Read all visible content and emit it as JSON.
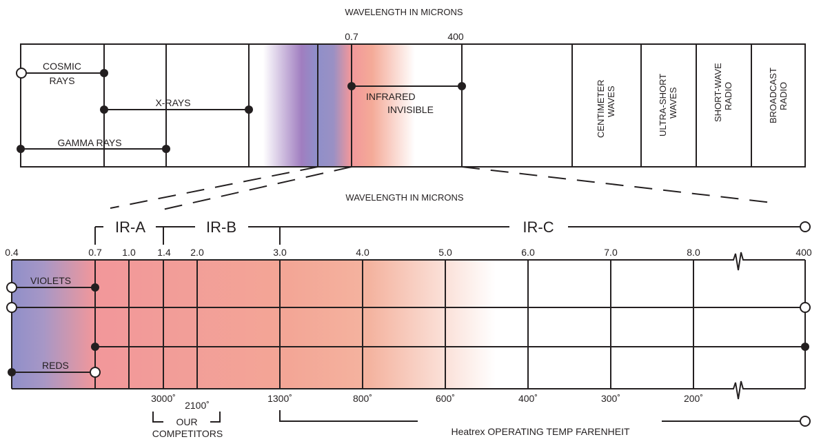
{
  "top_chart": {
    "title": "WAVELENGTH IN MICRONS",
    "tick_labels": [
      "0.7",
      "400"
    ],
    "cosmic_rays": [
      "COSMIC",
      "RAYS"
    ],
    "x_rays": "X-RAYS",
    "gamma_rays": "GAMMA RAYS",
    "infrared": [
      "INFRARED",
      "INVISIBLE"
    ],
    "bands": [
      {
        "lines": [
          "CENTIMETER",
          "WAVES"
        ]
      },
      {
        "lines": [
          "ULTRA-SHORT",
          "WAVES"
        ]
      },
      {
        "lines": [
          "SHORT-WAVE",
          "RADIO"
        ]
      },
      {
        "lines": [
          "BROADCAST",
          "RADIO"
        ]
      }
    ]
  },
  "bottom_chart": {
    "title": "WAVELENGTH IN MICRONS",
    "ir_labels": [
      {
        "text": "IR-A",
        "color": "#be1e2d"
      },
      {
        "text": "IR-B",
        "color": "#be1e2d"
      },
      {
        "text": "IR-C",
        "color": "#00a651"
      }
    ],
    "wavelength_ticks": [
      "0.4",
      "0.7",
      "1.0",
      "1.4",
      "2.0",
      "3.0",
      "4.0",
      "5.0",
      "6.0",
      "7.0",
      "8.0",
      "400"
    ],
    "violets": "VIOLETS",
    "reds": "REDS",
    "temp_ticks": [
      "3000˚",
      "2100˚",
      "1300˚",
      "800˚",
      "600˚",
      "400˚",
      "300˚",
      "200˚"
    ],
    "competitors": [
      "OUR",
      "COMPETITORS"
    ],
    "operating_temp": "Heatrex OPERATING TEMP FARENHEIT"
  },
  "colors": {
    "line": "#231f20",
    "violet": "#8f8fc9",
    "purple": "#a07ec0",
    "red": "#f2979a",
    "salmon": "#f4aa98"
  }
}
